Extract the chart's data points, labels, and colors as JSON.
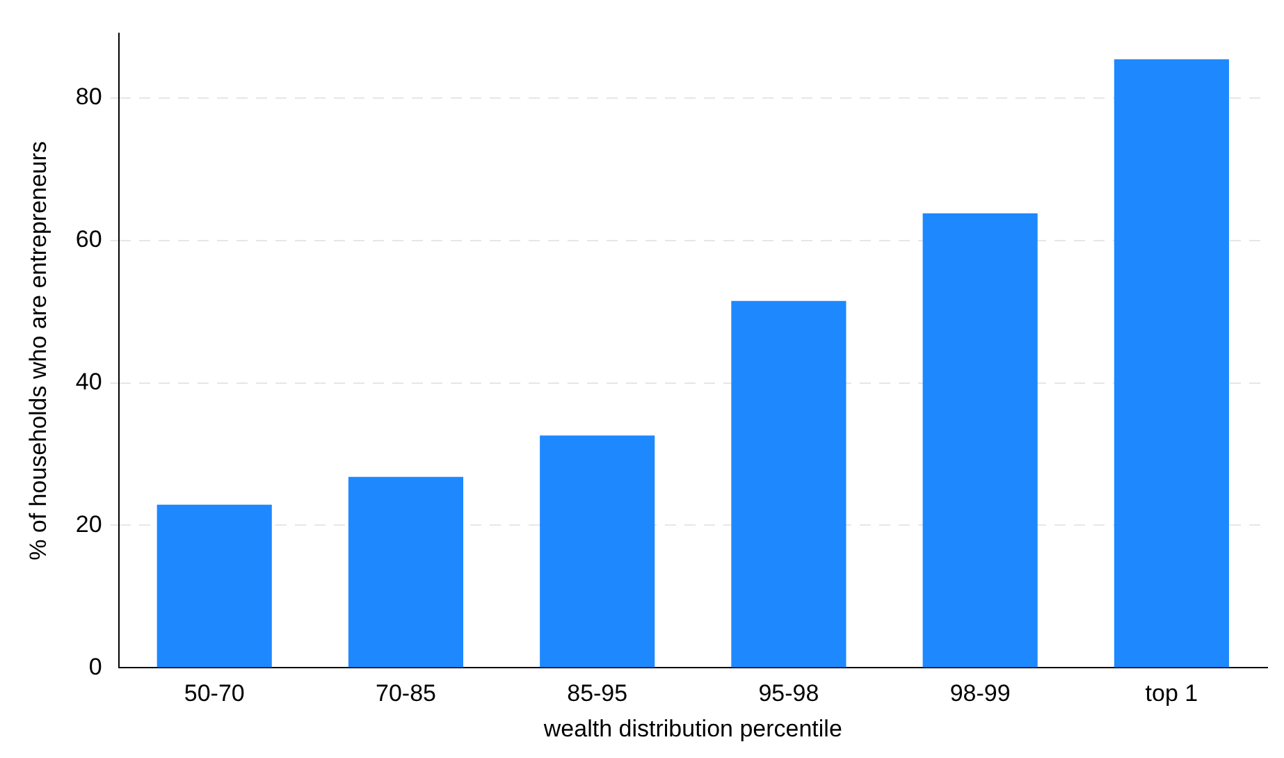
{
  "chart_data": {
    "type": "bar",
    "xlabel": "wealth distribution percentile",
    "ylabel": "% of households who are entrepreneurs",
    "categories": [
      "50-70",
      "70-85",
      "85-95",
      "95-98",
      "98-99",
      "top 1"
    ],
    "values": [
      22.9,
      26.8,
      32.6,
      51.5,
      63.8,
      85.4
    ],
    "color": "#1e88ff",
    "ylim": [
      0,
      89
    ],
    "yticks": [
      0,
      20,
      40,
      60,
      80
    ],
    "grid": "y",
    "legend": false
  }
}
